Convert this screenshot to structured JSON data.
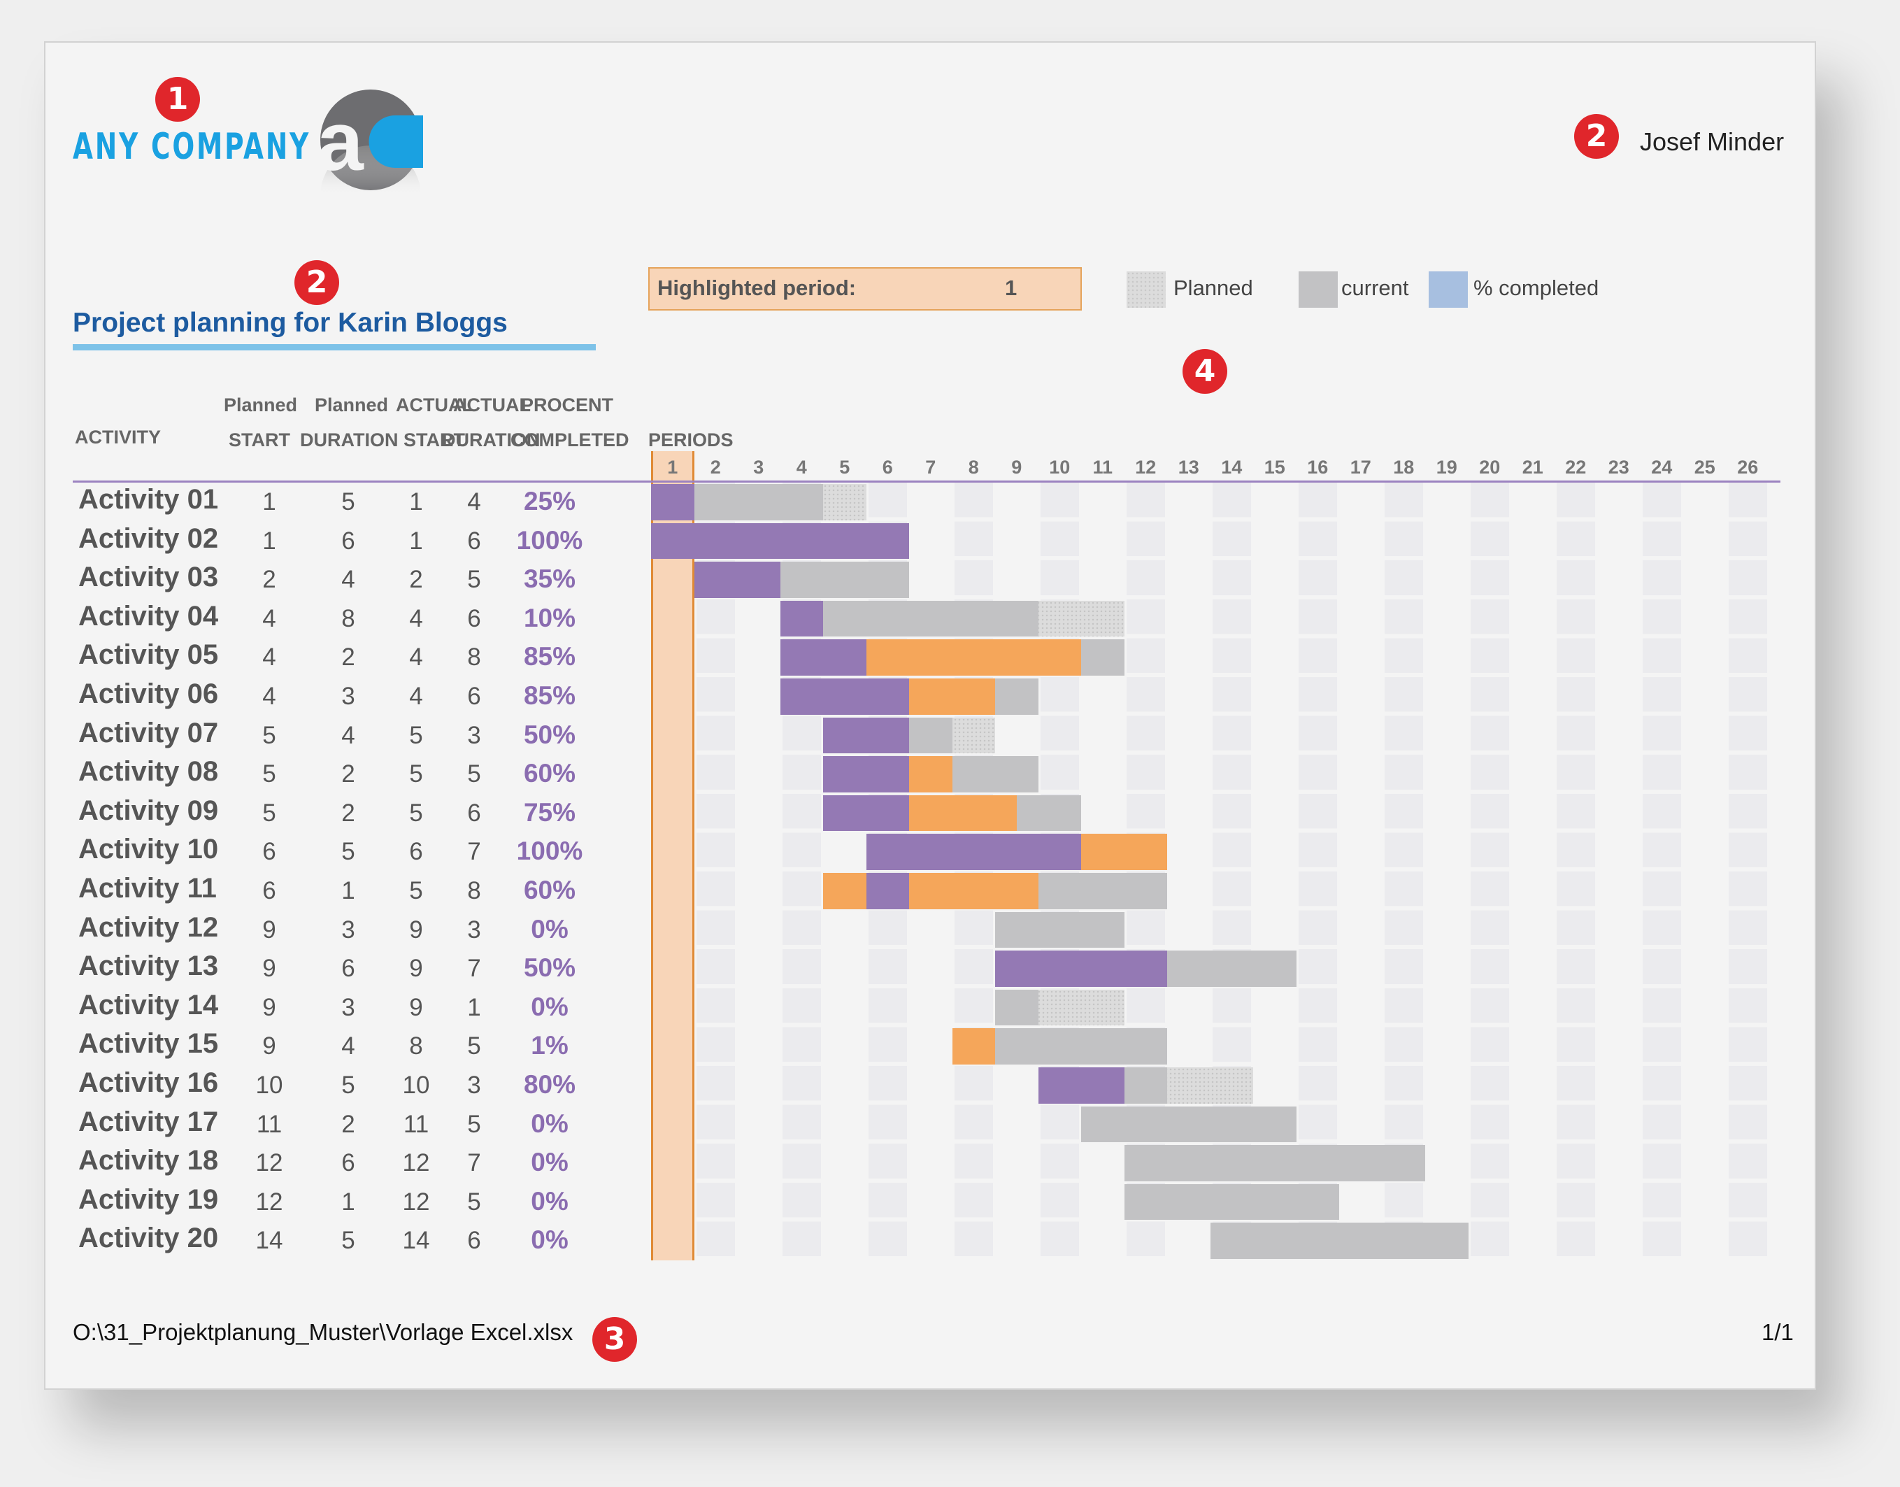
{
  "company": {
    "name": "ANY COMPANY",
    "logo_letters": "aC"
  },
  "badges": {
    "one": "1",
    "two": "2",
    "three": "3",
    "four": "4"
  },
  "person_name": "Josef Minder",
  "project_title": "Project planning for Karin Bloggs",
  "highlight": {
    "label": "Highlighted period:",
    "value": "1"
  },
  "legend": {
    "planned": "Planned",
    "current": "current",
    "completed": "% completed"
  },
  "headers": {
    "activity": "ACTIVITY",
    "planned_start_1": "Planned",
    "planned_start_2": "START",
    "planned_duration_1": "Planned",
    "planned_duration_2": "DURATION",
    "actual_start_1": "ACTUAL",
    "actual_start_2": "START",
    "actual_duration_1": "ACTUAL",
    "actual_duration_2": "DURATION",
    "percent_1": "PROCENT",
    "percent_2": "COMPLETED",
    "periods": "PERIODS"
  },
  "period_numbers": [
    "1",
    "2",
    "3",
    "4",
    "5",
    "6",
    "7",
    "8",
    "9",
    "10",
    "11",
    "12",
    "13",
    "14",
    "15",
    "16",
    "17",
    "18",
    "19",
    "20",
    "21",
    "22",
    "23",
    "24",
    "25",
    "26"
  ],
  "activities": [
    {
      "name": "Activity 01",
      "plan_start": 1,
      "plan_dur": 5,
      "act_start": 1,
      "act_dur": 4,
      "pct": "25%",
      "pct_value": 25
    },
    {
      "name": "Activity 02",
      "plan_start": 1,
      "plan_dur": 6,
      "act_start": 1,
      "act_dur": 6,
      "pct": "100%",
      "pct_value": 100
    },
    {
      "name": "Activity 03",
      "plan_start": 2,
      "plan_dur": 4,
      "act_start": 2,
      "act_dur": 5,
      "pct": "35%",
      "pct_value": 35
    },
    {
      "name": "Activity 04",
      "plan_start": 4,
      "plan_dur": 8,
      "act_start": 4,
      "act_dur": 6,
      "pct": "10%",
      "pct_value": 10
    },
    {
      "name": "Activity 05",
      "plan_start": 4,
      "plan_dur": 2,
      "act_start": 4,
      "act_dur": 8,
      "pct": "85%",
      "pct_value": 85
    },
    {
      "name": "Activity 06",
      "plan_start": 4,
      "plan_dur": 3,
      "act_start": 4,
      "act_dur": 6,
      "pct": "85%",
      "pct_value": 85
    },
    {
      "name": "Activity 07",
      "plan_start": 5,
      "plan_dur": 4,
      "act_start": 5,
      "act_dur": 3,
      "pct": "50%",
      "pct_value": 50
    },
    {
      "name": "Activity 08",
      "plan_start": 5,
      "plan_dur": 2,
      "act_start": 5,
      "act_dur": 5,
      "pct": "60%",
      "pct_value": 60
    },
    {
      "name": "Activity 09",
      "plan_start": 5,
      "plan_dur": 2,
      "act_start": 5,
      "act_dur": 6,
      "pct": "75%",
      "pct_value": 75
    },
    {
      "name": "Activity 10",
      "plan_start": 6,
      "plan_dur": 5,
      "act_start": 6,
      "act_dur": 7,
      "pct": "100%",
      "pct_value": 100
    },
    {
      "name": "Activity 11",
      "plan_start": 6,
      "plan_dur": 1,
      "act_start": 5,
      "act_dur": 8,
      "pct": "60%",
      "pct_value": 60
    },
    {
      "name": "Activity 12",
      "plan_start": 9,
      "plan_dur": 3,
      "act_start": 9,
      "act_dur": 3,
      "pct": "0%",
      "pct_value": 0
    },
    {
      "name": "Activity 13",
      "plan_start": 9,
      "plan_dur": 6,
      "act_start": 9,
      "act_dur": 7,
      "pct": "50%",
      "pct_value": 50
    },
    {
      "name": "Activity 14",
      "plan_start": 9,
      "plan_dur": 3,
      "act_start": 9,
      "act_dur": 1,
      "pct": "0%",
      "pct_value": 0
    },
    {
      "name": "Activity 15",
      "plan_start": 9,
      "plan_dur": 4,
      "act_start": 8,
      "act_dur": 5,
      "pct": "1%",
      "pct_value": 1
    },
    {
      "name": "Activity 16",
      "plan_start": 10,
      "plan_dur": 5,
      "act_start": 10,
      "act_dur": 3,
      "pct": "80%",
      "pct_value": 80
    },
    {
      "name": "Activity 17",
      "plan_start": 11,
      "plan_dur": 2,
      "act_start": 11,
      "act_dur": 5,
      "pct": "0%",
      "pct_value": 0
    },
    {
      "name": "Activity 18",
      "plan_start": 12,
      "plan_dur": 6,
      "act_start": 12,
      "act_dur": 7,
      "pct": "0%",
      "pct_value": 0
    },
    {
      "name": "Activity 19",
      "plan_start": 12,
      "plan_dur": 1,
      "act_start": 12,
      "act_dur": 5,
      "pct": "0%",
      "pct_value": 0
    },
    {
      "name": "Activity 20",
      "plan_start": 14,
      "plan_dur": 5,
      "act_start": 14,
      "act_dur": 6,
      "pct": "0%",
      "pct_value": 0
    }
  ],
  "colors": {
    "purple": "#9479b4",
    "orange": "#f5a65a",
    "gray": "#c2c2c4",
    "planned_light": "#dcdcdc",
    "highlight_col": "#f8d5b8",
    "highlight_border": "#e08a35",
    "grid_alt": "#ebebee",
    "completed_legend": "#a7bfe0",
    "header_line": "#9b82c0"
  },
  "footer": {
    "path": "O:\\31_Projektplanung_Muster\\Vorlage Excel.xlsx",
    "page": "1/1"
  }
}
